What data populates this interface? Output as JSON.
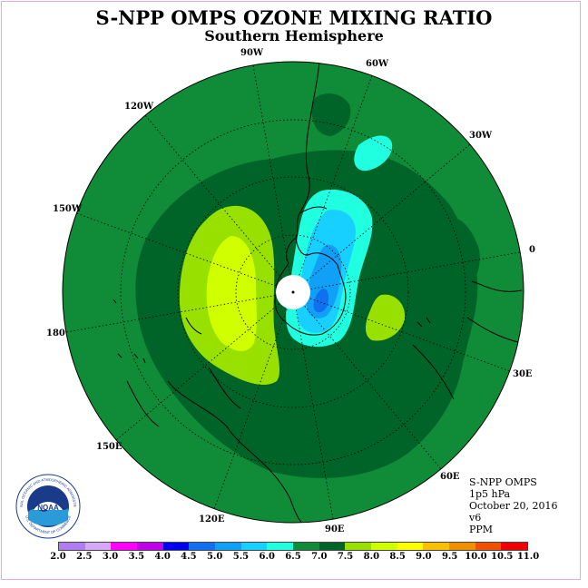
{
  "title": "S-NPP OMPS OZONE MIXING RATIO",
  "subtitle": "Southern Hemisphere",
  "longitude_labels": [
    "90W",
    "60W",
    "30W",
    "0",
    "30E",
    "60E",
    "90E",
    "120E",
    "150E",
    "180",
    "150W",
    "120W"
  ],
  "info": {
    "instrument": "S-NPP OMPS",
    "level": "1p5 hPa",
    "date": "October 20, 2016",
    "version": "v6",
    "units": "PPM"
  },
  "logo": {
    "text": "NOAA",
    "ring_text": "NATIONAL OCEANIC AND ATMOSPHERIC ADMINISTRATION",
    "ring_text_bottom": "U.S. DEPARTMENT OF COMMERCE"
  },
  "colorbar": {
    "ticks": [
      "2.0",
      "2.5",
      "3.0",
      "3.5",
      "4.0",
      "4.5",
      "5.0",
      "5.5",
      "6.0",
      "6.5",
      "7.0",
      "7.5",
      "8.0",
      "8.5",
      "9.0",
      "9.5",
      "10.0",
      "10.5",
      "11.0"
    ],
    "colors": [
      "#b07cf0",
      "#d8a8f8",
      "#ff00ff",
      "#c000e8",
      "#0000f0",
      "#1070f0",
      "#10a0f8",
      "#18d0ff",
      "#20ffe0",
      "#108c38",
      "#006428",
      "#98e000",
      "#d0ff00",
      "#ffff00",
      "#f8c000",
      "#f09000",
      "#f05000",
      "#f00000",
      "#804830"
    ]
  },
  "colors": {
    "green_6_0": "#108c38",
    "dark_green_6_5": "#006428",
    "lime_7_0": "#98e000",
    "yellow_green_7_5": "#d0ff00",
    "cyan_5_5": "#20ffe0",
    "light_blue_5_0": "#18d0ff",
    "blue_4_5": "#10a0f8",
    "mid_blue_4_0": "#1070f0"
  }
}
